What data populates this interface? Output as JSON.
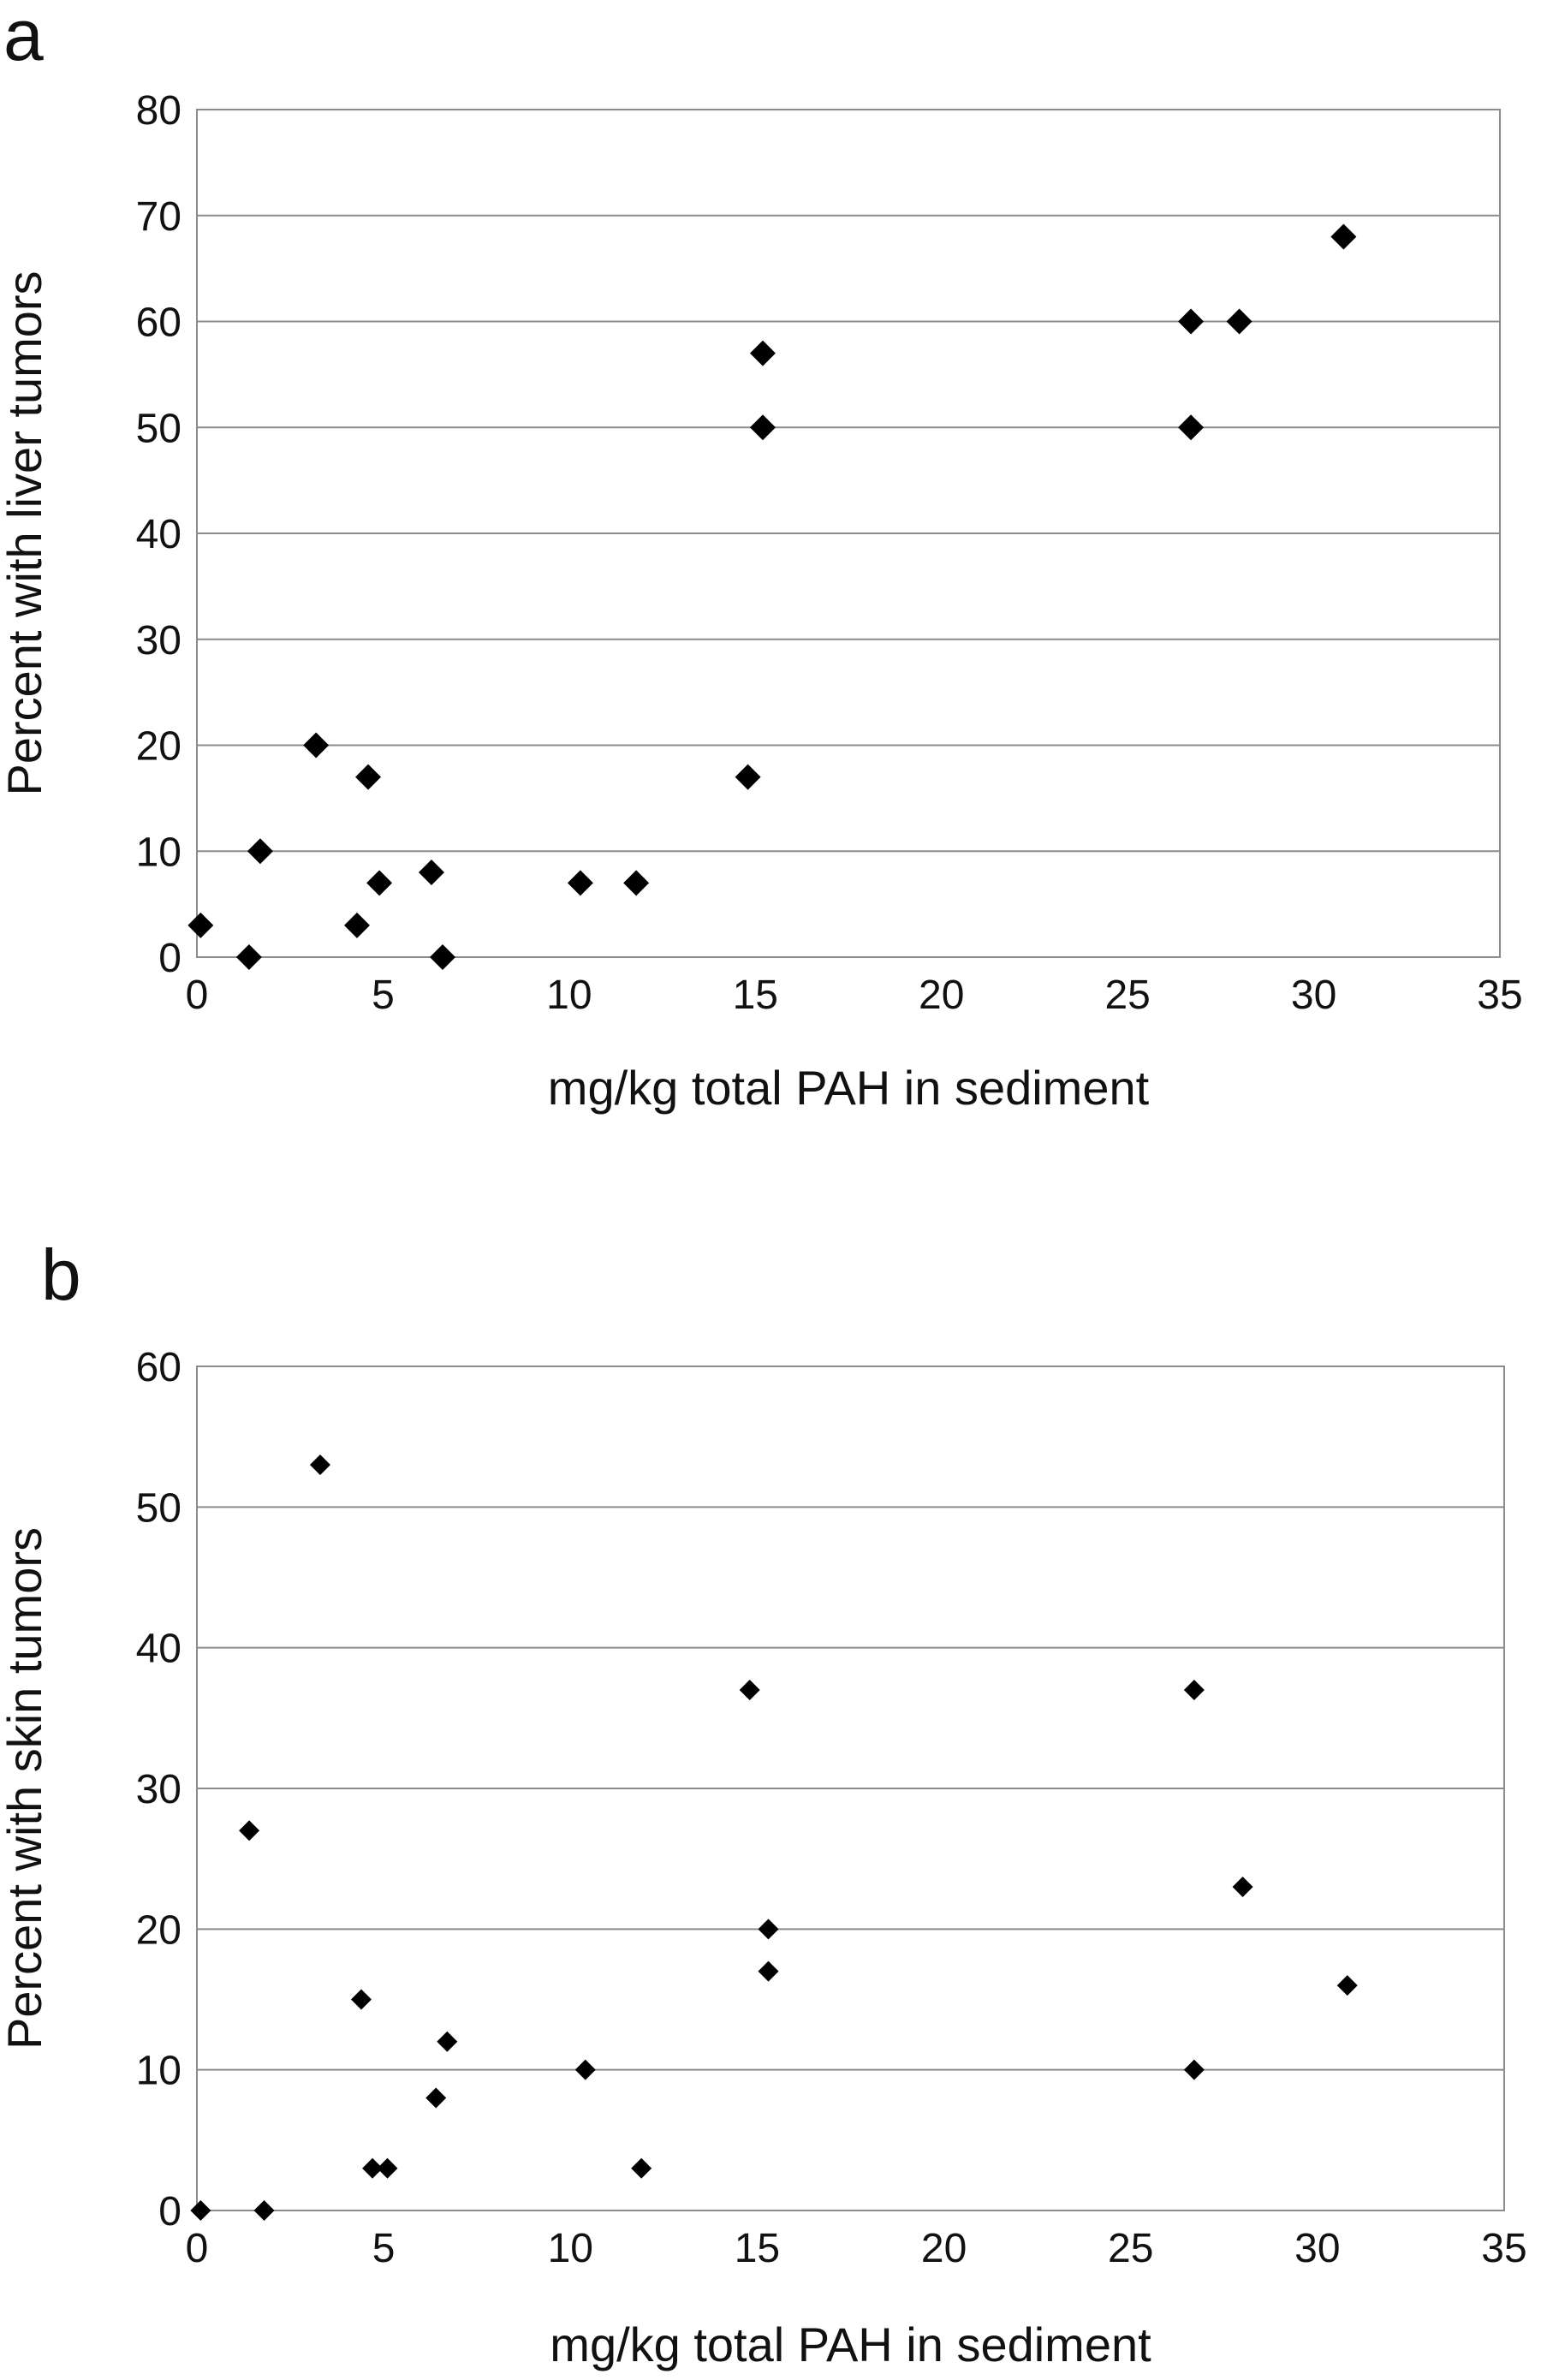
{
  "chart_data": [
    {
      "type": "scatter",
      "panel_label": "a",
      "xlabel": "mg/kg total PAH in sediment",
      "ylabel": "Percent with liver tumors",
      "xlim": [
        0,
        35
      ],
      "ylim": [
        0,
        80
      ],
      "x_ticks": [
        "0",
        "5",
        "10",
        "15",
        "20",
        "25",
        "30",
        "35"
      ],
      "y_ticks": [
        "0",
        "10",
        "20",
        "30",
        "40",
        "50",
        "60",
        "70",
        "80"
      ],
      "grid": true,
      "marker": "diamond",
      "color": "#000000",
      "points": [
        {
          "x": 0.1,
          "y": 3
        },
        {
          "x": 1.4,
          "y": 0
        },
        {
          "x": 1.7,
          "y": 10
        },
        {
          "x": 3.2,
          "y": 20
        },
        {
          "x": 4.3,
          "y": 3
        },
        {
          "x": 4.6,
          "y": 17
        },
        {
          "x": 4.9,
          "y": 7
        },
        {
          "x": 6.3,
          "y": 8
        },
        {
          "x": 6.6,
          "y": 0
        },
        {
          "x": 10.3,
          "y": 7
        },
        {
          "x": 11.8,
          "y": 7
        },
        {
          "x": 14.8,
          "y": 17
        },
        {
          "x": 15.2,
          "y": 57
        },
        {
          "x": 15.2,
          "y": 50
        },
        {
          "x": 26.7,
          "y": 60
        },
        {
          "x": 26.7,
          "y": 50
        },
        {
          "x": 28.0,
          "y": 60
        },
        {
          "x": 30.8,
          "y": 68
        }
      ]
    },
    {
      "type": "scatter",
      "panel_label": "b",
      "xlabel": "mg/kg total PAH in sediment",
      "ylabel": "Percent with skin tumors",
      "xlim": [
        0,
        35
      ],
      "ylim": [
        0,
        60
      ],
      "x_ticks": [
        "0",
        "5",
        "10",
        "15",
        "20",
        "25",
        "30",
        "35"
      ],
      "y_ticks": [
        "0",
        "10",
        "20",
        "30",
        "40",
        "50",
        "60"
      ],
      "grid": true,
      "marker": "diamond",
      "color": "#000000",
      "points": [
        {
          "x": 0.1,
          "y": 0
        },
        {
          "x": 1.4,
          "y": 27
        },
        {
          "x": 1.8,
          "y": 0
        },
        {
          "x": 3.3,
          "y": 53
        },
        {
          "x": 4.4,
          "y": 15
        },
        {
          "x": 4.7,
          "y": 3
        },
        {
          "x": 5.1,
          "y": 3
        },
        {
          "x": 6.4,
          "y": 8
        },
        {
          "x": 6.7,
          "y": 12
        },
        {
          "x": 10.4,
          "y": 10
        },
        {
          "x": 11.9,
          "y": 3
        },
        {
          "x": 14.8,
          "y": 37
        },
        {
          "x": 15.3,
          "y": 20
        },
        {
          "x": 15.3,
          "y": 17
        },
        {
          "x": 26.7,
          "y": 37
        },
        {
          "x": 26.7,
          "y": 10
        },
        {
          "x": 28.0,
          "y": 23
        },
        {
          "x": 30.8,
          "y": 16
        }
      ]
    }
  ]
}
